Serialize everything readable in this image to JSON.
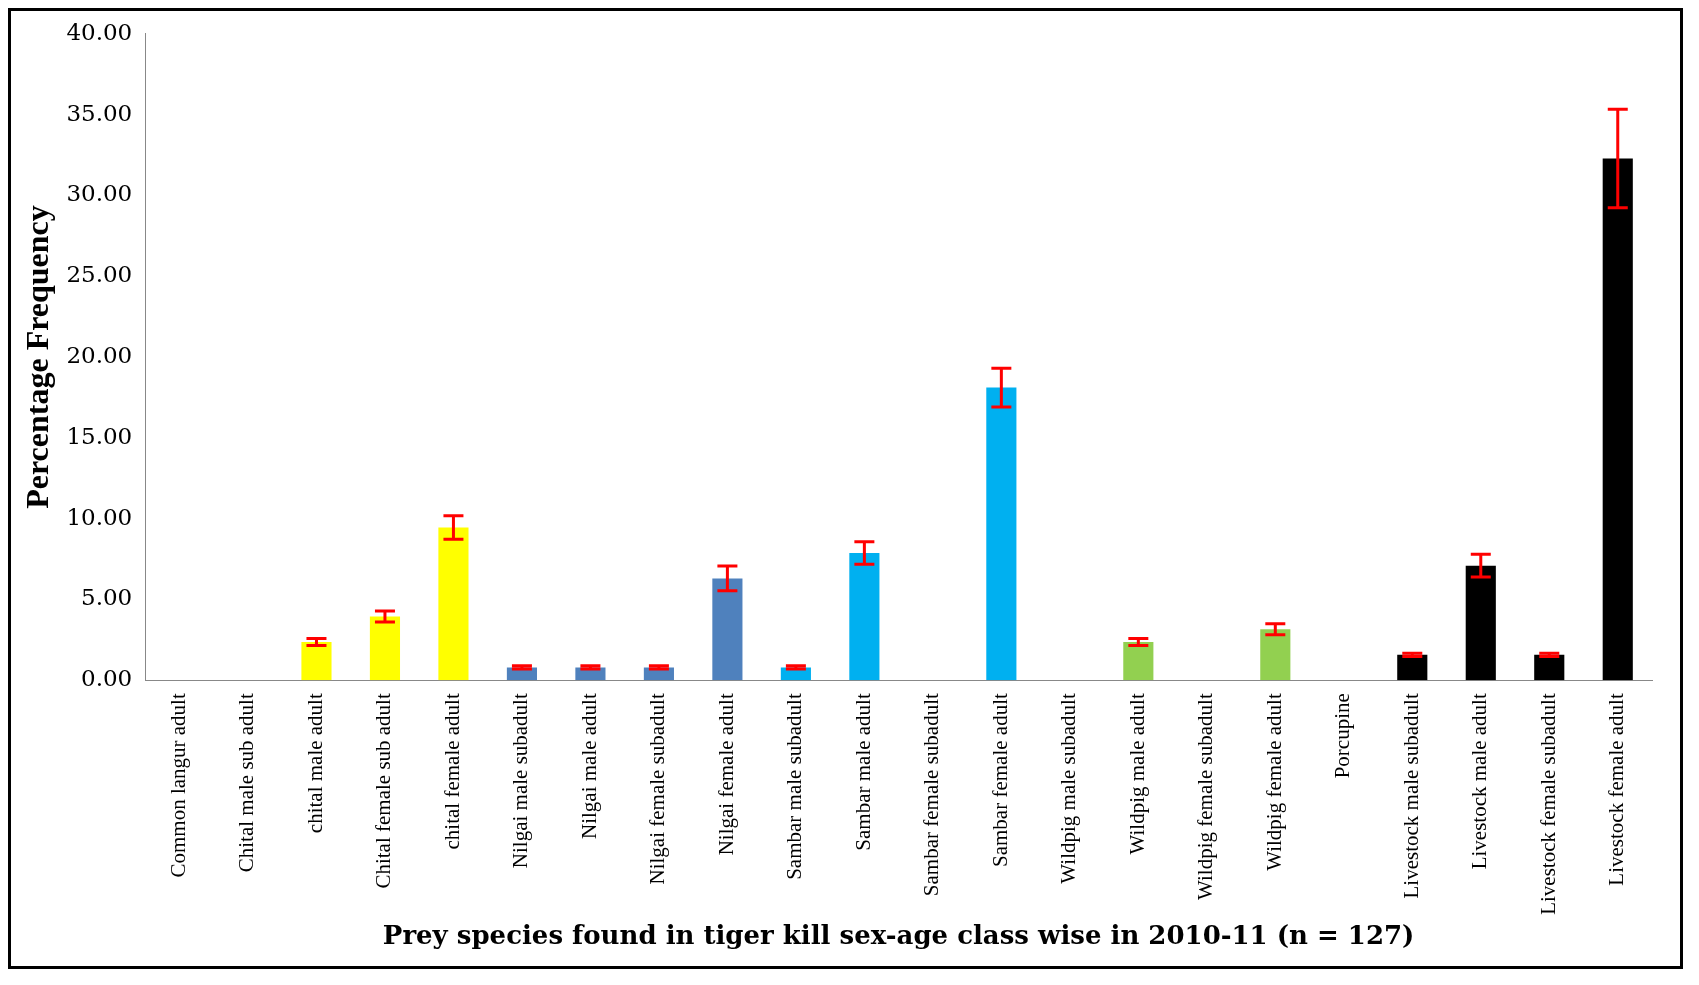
{
  "chart_data": {
    "type": "bar",
    "xlabel": "Prey species found in tiger kill sex-age class wise in 2010-11 (n = 127)",
    "ylabel": "Percentage Frequency",
    "categories": [
      "Common langur adult",
      "Chital male sub adult",
      "chital male adult",
      "Chital female sub adult",
      "chital female adult",
      "Nilgai male subadult",
      "Nilgai male adult",
      "Nilgai female subadult",
      "Nilgai female adult",
      "Sambar male subadult",
      "Sambar male adult",
      "Sambar female subadult",
      "Sambar female adult",
      "Wildpig male subadult",
      "Wildpig male adult",
      "Wildpig female subadult",
      "Wildpig female adult",
      "Porcupine",
      "Livestock male subadult",
      "Livestock male adult",
      "Livestock female subadult",
      "Livestock female adult"
    ],
    "values": [
      0,
      0,
      2.36,
      3.94,
      9.45,
      0.79,
      0.79,
      0.79,
      6.3,
      0.79,
      7.87,
      0,
      18.11,
      0,
      2.36,
      0,
      3.15,
      0,
      1.57,
      7.09,
      1.57,
      32.28
    ],
    "errors": [
      null,
      null,
      0.22,
      0.34,
      0.72,
      0.1,
      0.1,
      0.1,
      0.76,
      0.1,
      0.7,
      null,
      1.2,
      null,
      0.22,
      null,
      0.34,
      null,
      0.1,
      0.7,
      0.1,
      3.05
    ],
    "colors": [
      "#ffff00",
      "#ffff00",
      "#ffff00",
      "#ffff00",
      "#ffff00",
      "#4f81bd",
      "#4f81bd",
      "#4f81bd",
      "#4f81bd",
      "#00b0f0",
      "#00b0f0",
      "#00b0f0",
      "#00b0f0",
      "#92d050",
      "#92d050",
      "#92d050",
      "#92d050",
      "#000000",
      "#000000",
      "#000000",
      "#000000",
      "#000000"
    ],
    "ylim": [
      0,
      40
    ],
    "yticks": [
      {
        "value": 0,
        "label": "0.00"
      },
      {
        "value": 5,
        "label": "5.00"
      },
      {
        "value": 10,
        "label": "10.00"
      },
      {
        "value": 15,
        "label": "15.00"
      },
      {
        "value": 20,
        "label": "20.00"
      },
      {
        "value": 25,
        "label": "25.00"
      },
      {
        "value": 30,
        "label": "30.00"
      },
      {
        "value": 35,
        "label": "35.00"
      },
      {
        "value": 40,
        "label": "40.00"
      }
    ],
    "grid": false,
    "legend": false
  }
}
